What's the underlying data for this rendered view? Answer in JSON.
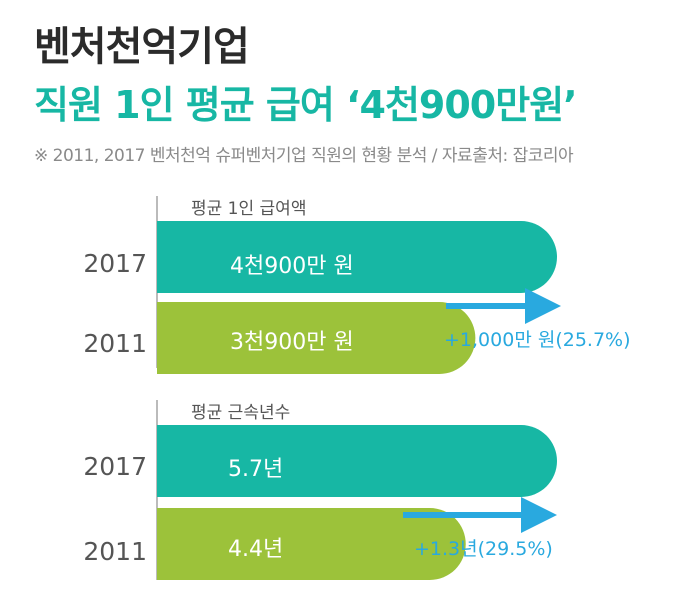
{
  "title": "벤처천억기업",
  "subtitle": "직원 1인 평균 급여 ‘4천900만원’",
  "note": "※ 2011, 2017 벤처천억 슈퍼벤처기업 직원의 현황 분석 / 자료출처: 잡코리아",
  "colors": {
    "y2017": "#17b7a4",
    "y2011": "#9cc23a",
    "arrow": "#29a9df"
  },
  "chart_data": [
    {
      "type": "bar",
      "title": "평균 1인 급여액",
      "categories": [
        "2017",
        "2011"
      ],
      "values": [
        4900,
        3900
      ],
      "value_labels": [
        "4천900만 원",
        "3천900만 원"
      ],
      "change_label": "+1,000만 원(25.7%)",
      "unit": "만 원"
    },
    {
      "type": "bar",
      "title": "평균 근속년수",
      "categories": [
        "2017",
        "2011"
      ],
      "values": [
        5.7,
        4.4
      ],
      "value_labels": [
        "5.7년",
        "4.4년"
      ],
      "change_label": "+1.3년(29.5%)",
      "unit": "년"
    }
  ]
}
